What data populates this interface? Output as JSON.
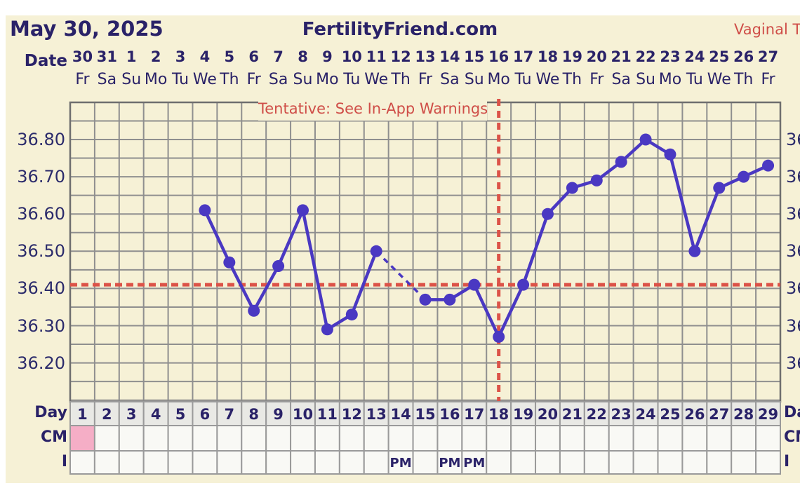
{
  "header": {
    "date_title": "May 30, 2025",
    "site_title": "FertilityFriend.com",
    "chart_type_label": "Vaginal T"
  },
  "tentative_note": "Tentative: See In-App Warnings",
  "axis": {
    "date_label": "Date",
    "dates": [
      "30",
      "31",
      "1",
      "2",
      "3",
      "4",
      "5",
      "6",
      "7",
      "8",
      "9",
      "10",
      "11",
      "12",
      "13",
      "14",
      "15",
      "16",
      "17",
      "18",
      "19",
      "20",
      "21",
      "22",
      "23",
      "24",
      "25",
      "26",
      "27"
    ],
    "weekdays": [
      "Fr",
      "Sa",
      "Su",
      "Mo",
      "Tu",
      "We",
      "Th",
      "Fr",
      "Sa",
      "Su",
      "Mo",
      "Tu",
      "We",
      "Th",
      "Fr",
      "Sa",
      "Su",
      "Mo",
      "Tu",
      "We",
      "Th",
      "Fr",
      "Sa",
      "Su",
      "Mo",
      "Tu",
      "We",
      "Th",
      "Fr"
    ],
    "y_tick_labels": [
      "36.80",
      "36.70",
      "36.60",
      "36.50",
      "36.40",
      "36.30",
      "36.20"
    ],
    "y_tick_values": [
      36.8,
      36.7,
      36.6,
      36.5,
      36.4,
      36.3,
      36.2
    ]
  },
  "chart_data": {
    "type": "line",
    "x_unit": "cycle_day",
    "days": [
      1,
      2,
      3,
      4,
      5,
      6,
      7,
      8,
      9,
      10,
      11,
      12,
      13,
      14,
      15,
      16,
      17,
      18,
      19,
      20,
      21,
      22,
      23,
      24,
      25,
      26,
      27,
      28,
      29
    ],
    "series": [
      {
        "name": "temperature_celsius",
        "values": [
          null,
          null,
          null,
          null,
          null,
          36.61,
          36.47,
          36.34,
          36.46,
          36.61,
          36.29,
          36.33,
          36.5,
          null,
          36.37,
          36.37,
          36.41,
          36.27,
          36.41,
          36.6,
          36.67,
          36.69,
          36.74,
          36.8,
          36.76,
          36.5,
          36.67,
          36.7,
          36.73
        ]
      }
    ],
    "missing_data_days": [
      1,
      2,
      3,
      4,
      5,
      14
    ],
    "dashed_gap_between_days": [
      13,
      15
    ],
    "coverline_temp": 36.41,
    "ovulation_day": 18,
    "ylim": [
      36.1,
      36.9
    ],
    "grid_step_y": 0.05,
    "grid_on": true,
    "legend": "none"
  },
  "table": {
    "day_label": "Day",
    "cm_label": "CM",
    "i_label": "I",
    "day_numbers": [
      "1",
      "2",
      "3",
      "4",
      "5",
      "6",
      "7",
      "8",
      "9",
      "10",
      "11",
      "12",
      "13",
      "14",
      "15",
      "16",
      "17",
      "18",
      "19",
      "20",
      "21",
      "22",
      "23",
      "24",
      "25",
      "26",
      "27",
      "28",
      "29"
    ],
    "cm_pink_days": [
      1
    ],
    "intercourse_pm_days": [
      14,
      16,
      17
    ],
    "pm_text": "PM"
  },
  "colors": {
    "page_bg": "#ffffff",
    "panel_bg": "#f6f1d6",
    "grid_line": "#8f8f8f",
    "plot_border": "#6e6e6e",
    "temp_line": "#4a38c2",
    "red_dashed": "#dc5348",
    "navy_text": "#2a2268",
    "red_text": "#cf4e48",
    "day_cell_bg": "#e9e9e5",
    "cell_bg": "#f9f9f5",
    "cm_pink": "#f5aec6",
    "cell_border": "#9a9a9a"
  }
}
